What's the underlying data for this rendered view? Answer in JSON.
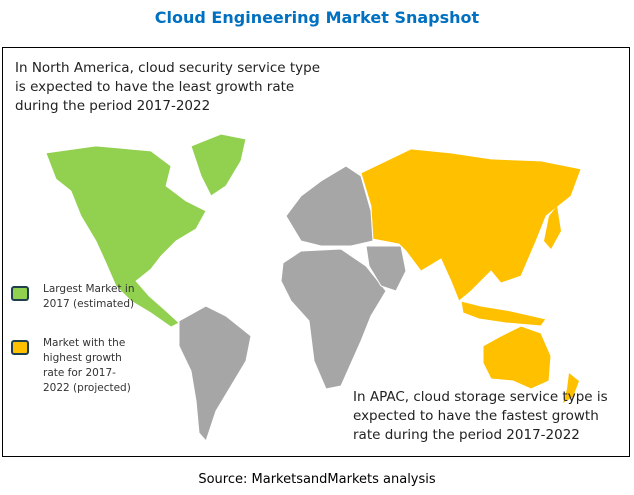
{
  "title": "Cloud Engineering Market Snapshot",
  "annotations": {
    "north_america": "In North America, cloud security service type is expected to have the least growth rate during the period 2017-2022",
    "apac": "In APAC, cloud storage service type is expected to have the fastest growth rate during the period 2017-2022"
  },
  "legend": [
    {
      "label": "Largest Market in 2017 (estimated)",
      "color": "#92D050"
    },
    {
      "label": "Market with the highest growth rate for 2017-2022 (projected)",
      "color": "#FFC000"
    }
  ],
  "colors": {
    "other_regions": "#A6A6A6",
    "title": "#0070C0"
  },
  "source": "Source: MarketsandMarkets analysis"
}
